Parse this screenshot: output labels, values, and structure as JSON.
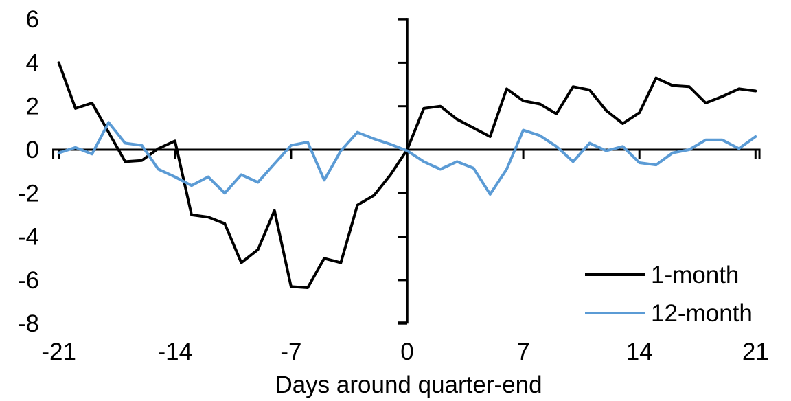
{
  "chart_data": {
    "type": "line",
    "title": "",
    "xlabel": "Days around quarter-end",
    "ylabel": "",
    "x": [
      -21,
      -20,
      -19,
      -18,
      -17,
      -16,
      -15,
      -14,
      -13,
      -12,
      -11,
      -10,
      -9,
      -8,
      -7,
      -6,
      -5,
      -4,
      -3,
      -2,
      -1,
      0,
      1,
      2,
      3,
      4,
      5,
      6,
      7,
      8,
      9,
      10,
      11,
      12,
      13,
      14,
      15,
      16,
      17,
      18,
      19,
      20,
      21
    ],
    "series": [
      {
        "name": "1-month",
        "color": "#000000",
        "values": [
          4.0,
          1.9,
          2.15,
          0.8,
          -0.55,
          -0.5,
          0.05,
          0.4,
          -3.0,
          -3.1,
          -3.4,
          -5.2,
          -4.6,
          -2.8,
          -6.3,
          -6.35,
          -5.0,
          -5.2,
          -2.55,
          -2.1,
          -1.15,
          0.0,
          1.9,
          2.0,
          1.4,
          1.0,
          0.6,
          2.8,
          2.25,
          2.1,
          1.65,
          2.9,
          2.75,
          1.8,
          1.2,
          1.7,
          3.3,
          2.95,
          2.9,
          2.15,
          2.45,
          2.8,
          2.7
        ]
      },
      {
        "name": "12-month",
        "color": "#5B9BD5",
        "values": [
          -0.15,
          0.1,
          -0.2,
          1.25,
          0.3,
          0.2,
          -0.9,
          -1.25,
          -1.65,
          -1.25,
          -2.0,
          -1.15,
          -1.5,
          -0.65,
          0.2,
          0.35,
          -1.4,
          -0.05,
          0.8,
          0.5,
          0.25,
          -0.05,
          -0.55,
          -0.9,
          -0.55,
          -0.85,
          -2.05,
          -0.9,
          0.9,
          0.65,
          0.15,
          -0.55,
          0.3,
          -0.05,
          0.15,
          -0.6,
          -0.7,
          -0.15,
          0.0,
          0.45,
          0.45,
          0.05,
          0.6
        ]
      }
    ],
    "xticks": [
      -21,
      -14,
      -7,
      0,
      7,
      14,
      21
    ],
    "yticks": [
      6,
      4,
      2,
      0,
      -2,
      -4,
      -6,
      -8
    ],
    "xlim": [
      -21.4,
      21.3
    ],
    "ylim": [
      -8,
      6
    ],
    "grid": false,
    "legend_position": "lower-right",
    "axis_color": "#000000",
    "background_color": "#ffffff"
  }
}
